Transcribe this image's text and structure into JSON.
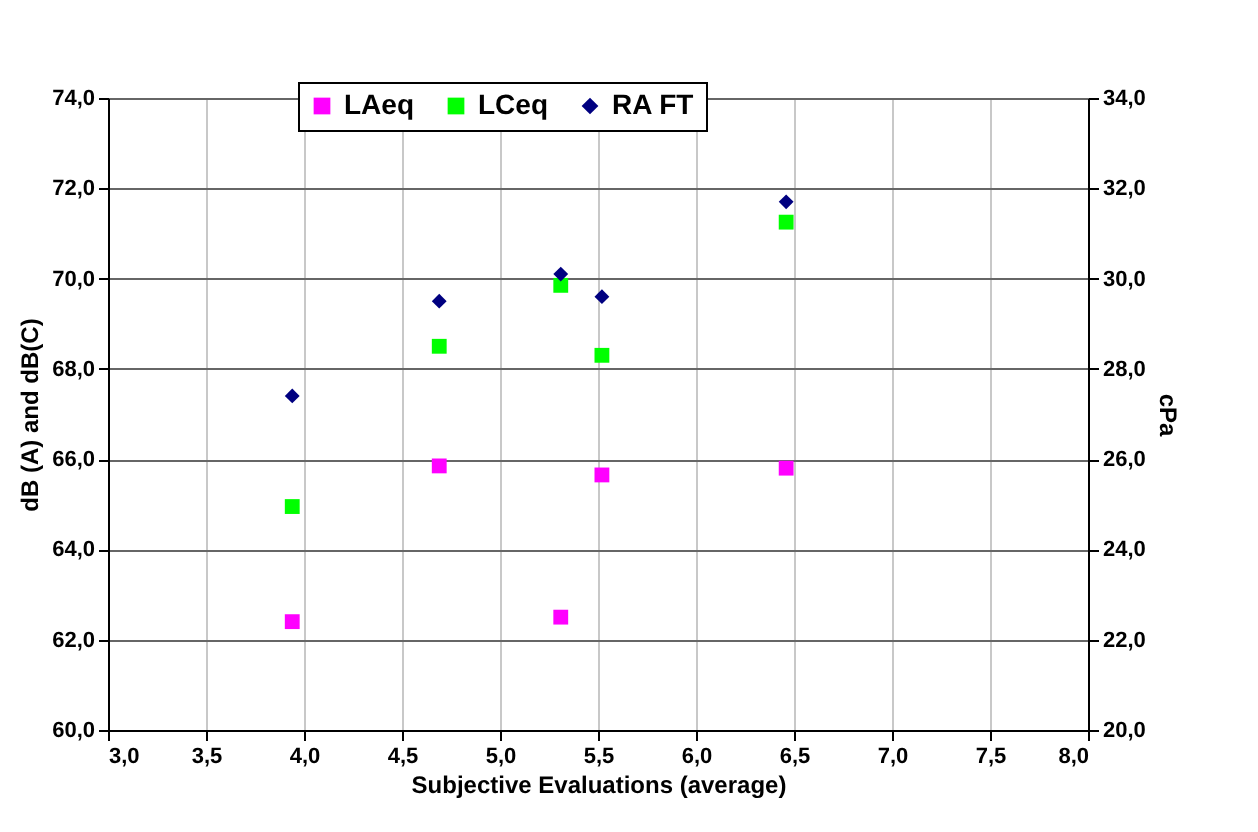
{
  "chart_data": {
    "type": "scatter",
    "xlabel": "Subjective Evaluations (average)",
    "ylabel": "dB (A) and dB(C)",
    "y2label": "cPa",
    "x": [
      3.94,
      4.69,
      5.31,
      5.52,
      6.46
    ],
    "series": [
      {
        "name": "LAeq",
        "color": "#ff00ff",
        "marker": "square",
        "values": [
          62.4,
          65.85,
          62.5,
          65.65,
          65.8
        ]
      },
      {
        "name": "LCeq",
        "color": "#00ff00",
        "marker": "square",
        "values": [
          64.95,
          68.5,
          69.85,
          68.3,
          71.25
        ]
      },
      {
        "name": "RA FT",
        "color": "#000080",
        "marker": "diamond",
        "axis": "y2",
        "values": [
          27.4,
          29.5,
          30.1,
          29.6,
          31.7
        ]
      }
    ],
    "xlim": [
      3,
      8
    ],
    "xticks": [
      {
        "value": 3,
        "label": "3,0"
      },
      {
        "value": 3.5,
        "label": "3,5"
      },
      {
        "value": 4,
        "label": "4,0"
      },
      {
        "value": 4.5,
        "label": "4,5"
      },
      {
        "value": 5,
        "label": "5,0"
      },
      {
        "value": 5.5,
        "label": "5,5"
      },
      {
        "value": 6,
        "label": "6,0"
      },
      {
        "value": 6.5,
        "label": "6,5"
      },
      {
        "value": 7,
        "label": "7,0"
      },
      {
        "value": 7.5,
        "label": "7,5"
      },
      {
        "value": 8,
        "label": "8,0"
      }
    ],
    "ylim": [
      60,
      74
    ],
    "yticks": [
      {
        "value": 60,
        "label": "60,0"
      },
      {
        "value": 62,
        "label": "62,0"
      },
      {
        "value": 64,
        "label": "64,0"
      },
      {
        "value": 66,
        "label": "66,0"
      },
      {
        "value": 68,
        "label": "68,0"
      },
      {
        "value": 70,
        "label": "70,0"
      },
      {
        "value": 72,
        "label": "72,0"
      },
      {
        "value": 74,
        "label": "74,0"
      }
    ],
    "y2lim": [
      20,
      34
    ],
    "y2ticks": [
      {
        "value": 20,
        "label": "20,0"
      },
      {
        "value": 22,
        "label": "22,0"
      },
      {
        "value": 24,
        "label": "24,0"
      },
      {
        "value": 26,
        "label": "26,0"
      },
      {
        "value": 28,
        "label": "28,0"
      },
      {
        "value": 30,
        "label": "30,0"
      },
      {
        "value": 32,
        "label": "32,0"
      },
      {
        "value": 34,
        "label": "34,0"
      }
    ],
    "grid": true,
    "legend": "top"
  }
}
